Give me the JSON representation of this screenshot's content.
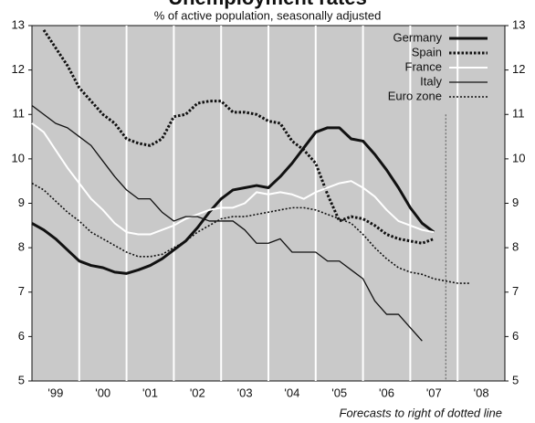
{
  "chart_data": {
    "type": "line",
    "title": "Unemployment rates",
    "subtitle": "% of active population, seasonally adjusted",
    "note": "Forecasts to right of dotted line",
    "x": [
      1999.0,
      1999.25,
      1999.5,
      1999.75,
      2000.0,
      2000.25,
      2000.5,
      2000.75,
      2001.0,
      2001.25,
      2001.5,
      2001.75,
      2002.0,
      2002.25,
      2002.5,
      2002.75,
      2003.0,
      2003.25,
      2003.5,
      2003.75,
      2004.0,
      2004.25,
      2004.5,
      2004.75,
      2005.0,
      2005.25,
      2005.5,
      2005.75,
      2006.0,
      2006.25,
      2006.5,
      2006.75,
      2007.0,
      2007.25,
      2007.5,
      2007.75,
      2008.0,
      2008.25
    ],
    "xlim": [
      1999,
      2009
    ],
    "xticks": [
      {
        "value": 1999.5,
        "label": "'99"
      },
      {
        "value": 2000.5,
        "label": "'00"
      },
      {
        "value": 2001.5,
        "label": "'01"
      },
      {
        "value": 2002.5,
        "label": "'02"
      },
      {
        "value": 2003.5,
        "label": "'03"
      },
      {
        "value": 2004.5,
        "label": "'04"
      },
      {
        "value": 2005.5,
        "label": "'05"
      },
      {
        "value": 2006.5,
        "label": "'06"
      },
      {
        "value": 2007.5,
        "label": "'07"
      },
      {
        "value": 2008.5,
        "label": "'08"
      }
    ],
    "ylim": [
      5,
      13
    ],
    "yticks": [
      5,
      6,
      7,
      8,
      9,
      10,
      11,
      12,
      13
    ],
    "forecast_start": 2007.75,
    "legend": "top-right",
    "series": [
      {
        "name": "Germany",
        "color": "#111111",
        "style": "solid",
        "width": 3,
        "values": [
          8.55,
          8.4,
          8.2,
          7.95,
          7.7,
          7.6,
          7.55,
          7.45,
          7.42,
          7.5,
          7.6,
          7.75,
          7.95,
          8.15,
          8.45,
          8.8,
          9.1,
          9.3,
          9.35,
          9.4,
          9.35,
          9.6,
          9.9,
          10.25,
          10.6,
          10.7,
          10.7,
          10.45,
          10.4,
          10.1,
          9.75,
          9.35,
          8.9,
          8.55,
          8.35,
          null,
          null,
          null
        ]
      },
      {
        "name": "Spain",
        "color": "#111111",
        "style": "dotted",
        "width": 3,
        "values": [
          null,
          12.9,
          12.5,
          12.1,
          11.6,
          11.3,
          11.0,
          10.8,
          10.45,
          10.35,
          10.3,
          10.45,
          10.95,
          11.0,
          11.25,
          11.3,
          11.3,
          11.05,
          11.05,
          11.0,
          10.85,
          10.8,
          10.4,
          10.2,
          9.9,
          9.2,
          8.6,
          8.7,
          8.65,
          8.5,
          8.3,
          8.2,
          8.15,
          8.1,
          8.2,
          null,
          null,
          null
        ]
      },
      {
        "name": "France",
        "color": "#ffffff",
        "style": "solid",
        "width": 2,
        "values": [
          10.8,
          10.6,
          10.2,
          9.8,
          9.45,
          9.1,
          8.85,
          8.55,
          8.35,
          8.3,
          8.3,
          8.4,
          8.5,
          8.65,
          8.75,
          8.85,
          8.9,
          8.9,
          9.0,
          9.25,
          9.2,
          9.25,
          9.2,
          9.1,
          9.25,
          9.35,
          9.45,
          9.5,
          9.35,
          9.15,
          8.85,
          8.6,
          8.5,
          8.4,
          8.35,
          null,
          null,
          null
        ]
      },
      {
        "name": "Italy",
        "color": "#111111",
        "style": "solid",
        "width": 1.3,
        "values": [
          11.2,
          11.0,
          10.8,
          10.7,
          10.5,
          10.3,
          9.95,
          9.6,
          9.3,
          9.1,
          9.1,
          8.8,
          8.6,
          8.7,
          8.7,
          8.6,
          8.6,
          8.6,
          8.4,
          8.1,
          8.1,
          8.2,
          7.9,
          7.9,
          7.9,
          7.7,
          7.7,
          7.5,
          7.3,
          6.8,
          6.5,
          6.5,
          6.2,
          5.9,
          null,
          null,
          null,
          null
        ]
      },
      {
        "name": "Euro zone",
        "color": "#111111",
        "style": "dotted",
        "width": 1.6,
        "values": [
          9.45,
          9.3,
          9.05,
          8.8,
          8.6,
          8.35,
          8.2,
          8.05,
          7.9,
          7.8,
          7.8,
          7.85,
          8.0,
          8.15,
          8.35,
          8.5,
          8.65,
          8.7,
          8.7,
          8.75,
          8.8,
          8.85,
          8.9,
          8.9,
          8.85,
          8.75,
          8.65,
          8.55,
          8.3,
          8.0,
          7.75,
          7.55,
          7.45,
          7.4,
          7.3,
          7.25,
          7.2,
          7.2
        ]
      }
    ]
  }
}
